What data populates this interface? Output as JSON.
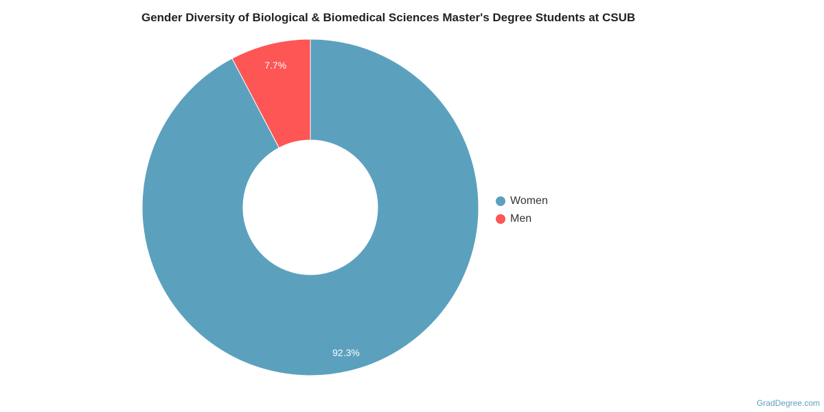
{
  "chart_data": {
    "type": "pie",
    "variant": "donut",
    "title": "Gender Diversity of Biological & Biomedical Sciences Master's Degree Students at CSUB",
    "slices": [
      {
        "label": "Women",
        "value": 92.3,
        "value_label": "92.3%",
        "color": "#5ba1be"
      },
      {
        "label": "Men",
        "value": 7.7,
        "value_label": "7.7%",
        "color": "#fe5555"
      }
    ],
    "legend": {
      "position": "right",
      "items": [
        "Women",
        "Men"
      ]
    }
  },
  "watermark": "GradDegree.com"
}
